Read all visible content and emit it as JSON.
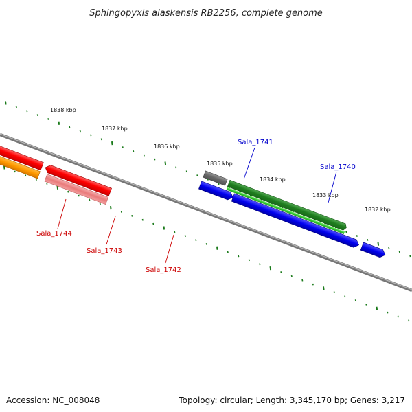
{
  "title": "Sphingopyxis alaskensis RB2256, complete genome",
  "footer": {
    "accession": "Accession: NC_008048",
    "info": "Topology: circular; Length: 3,345,170 bp; Genes: 3,217"
  },
  "colors": {
    "tick": "#1a7a1a",
    "backbone": "#888888",
    "label_forward": "#0000cc",
    "label_reverse": "#cc0000"
  },
  "kbp_labels": [
    "1838 kbp",
    "1837 kbp",
    "1836 kbp",
    "1835 kbp",
    "1834 kbp",
    "1833 kbp",
    "1832 kbp"
  ],
  "gene_labels": {
    "sala_1741": "Sala_1741",
    "sala_1740": "Sala_1740",
    "sala_1744": "Sala_1744",
    "sala_1743": "Sala_1743",
    "sala_1742": "Sala_1742"
  }
}
